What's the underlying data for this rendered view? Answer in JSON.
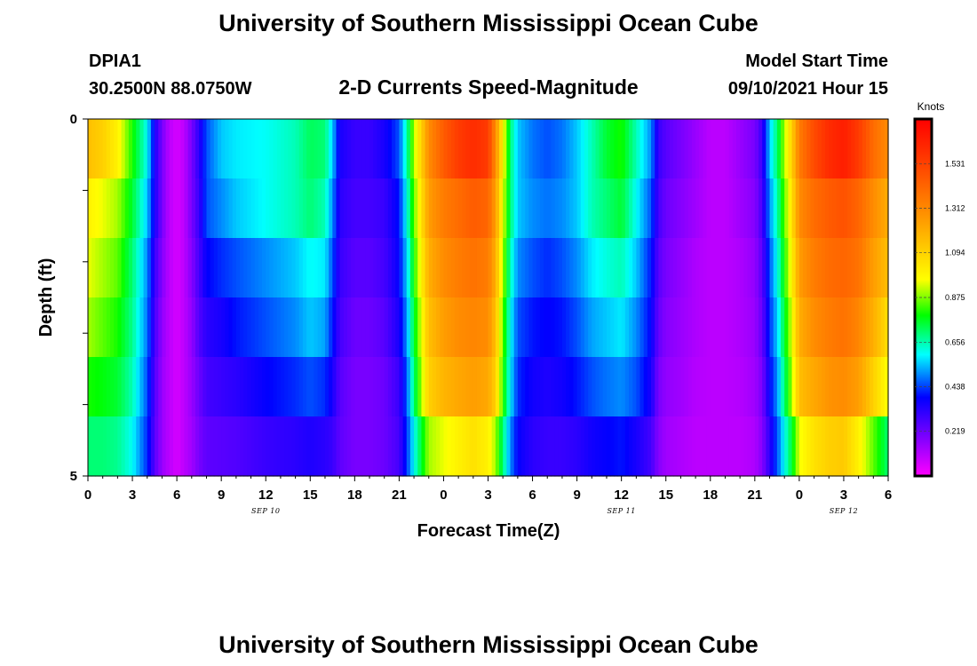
{
  "header": {
    "title": "University of Southern Mississippi Ocean Cube",
    "station": "DPIA1",
    "coords": "30.2500N  88.0750W",
    "subtitle": "2-D Currents Speed-Magnitude",
    "model_start_label": "Model Start Time",
    "model_start_value": "09/10/2021 Hour 15"
  },
  "footer": {
    "title": "University of Southern Mississippi Ocean Cube"
  },
  "chart_data": {
    "type": "heatmap",
    "xlabel": "Forecast Time(Z)",
    "ylabel": "Depth (ft)",
    "y_tick_labels": [
      "0",
      "5"
    ],
    "ylim": [
      0,
      5
    ],
    "x_tick_labels": [
      "0",
      "3",
      "6",
      "9",
      "12",
      "15",
      "18",
      "21",
      "0",
      "3",
      "6",
      "9",
      "12",
      "15",
      "18",
      "21",
      "0",
      "3",
      "6"
    ],
    "x_hours": [
      0,
      54
    ],
    "date_labels": [
      {
        "hour": 12,
        "label": "SEP 10"
      },
      {
        "hour": 36,
        "label": "SEP 11"
      },
      {
        "hour": 51,
        "label": "SEP 12"
      }
    ],
    "colorbar": {
      "title": "Knots",
      "ticks": [
        "0.219",
        "0.438",
        "0.656",
        "0.875",
        "1.094",
        "1.312",
        "1.531"
      ],
      "range": [
        0,
        1.75
      ]
    },
    "depth_layers": 6,
    "time_keypoints_hours": [
      0,
      1,
      2,
      3,
      4,
      4.5,
      5,
      5.5,
      6,
      6.5,
      7,
      7.5,
      8,
      9,
      10,
      12,
      14,
      15,
      16,
      16.5,
      17,
      18,
      19,
      20,
      21,
      21.5,
      22,
      22.5,
      23,
      24,
      25,
      26,
      27,
      27.5,
      28,
      28.5,
      29,
      30,
      31,
      32,
      33,
      34,
      35,
      36,
      37,
      38,
      38.5,
      39,
      40,
      41,
      42,
      43,
      44,
      45,
      45.5,
      46,
      46.5,
      47,
      47.5,
      48,
      49,
      50,
      51,
      52,
      53,
      54
    ],
    "speed_knots_by_layer": [
      [
        1.15,
        1.1,
        1.0,
        0.8,
        0.6,
        0.35,
        0.2,
        0.1,
        0.06,
        0.1,
        0.2,
        0.32,
        0.45,
        0.55,
        0.58,
        0.6,
        0.65,
        0.72,
        0.7,
        0.55,
        0.35,
        0.3,
        0.3,
        0.35,
        0.45,
        0.65,
        0.9,
        1.1,
        1.3,
        1.45,
        1.55,
        1.6,
        1.55,
        1.3,
        1.0,
        0.7,
        0.55,
        0.48,
        0.45,
        0.48,
        0.55,
        0.65,
        0.75,
        0.8,
        0.65,
        0.5,
        0.3,
        0.25,
        0.2,
        0.15,
        0.1,
        0.1,
        0.15,
        0.2,
        0.3,
        0.55,
        0.7,
        0.9,
        1.1,
        1.35,
        1.5,
        1.6,
        1.65,
        1.55,
        1.4,
        1.3
      ],
      [
        1.0,
        0.95,
        0.9,
        0.75,
        0.55,
        0.35,
        0.2,
        0.1,
        0.06,
        0.1,
        0.2,
        0.3,
        0.45,
        0.5,
        0.55,
        0.6,
        0.65,
        0.7,
        0.65,
        0.5,
        0.32,
        0.28,
        0.28,
        0.3,
        0.4,
        0.6,
        0.85,
        1.05,
        1.25,
        1.35,
        1.4,
        1.45,
        1.42,
        1.25,
        0.95,
        0.7,
        0.55,
        0.5,
        0.48,
        0.5,
        0.55,
        0.65,
        0.7,
        0.75,
        0.6,
        0.45,
        0.28,
        0.22,
        0.18,
        0.14,
        0.1,
        0.1,
        0.14,
        0.18,
        0.28,
        0.5,
        0.65,
        0.85,
        1.05,
        1.3,
        1.4,
        1.45,
        1.48,
        1.42,
        1.3,
        1.2
      ],
      [
        0.95,
        0.9,
        0.85,
        0.7,
        0.5,
        0.3,
        0.18,
        0.1,
        0.06,
        0.1,
        0.18,
        0.28,
        0.38,
        0.42,
        0.45,
        0.5,
        0.55,
        0.6,
        0.58,
        0.45,
        0.3,
        0.25,
        0.25,
        0.28,
        0.38,
        0.55,
        0.8,
        1.0,
        1.2,
        1.3,
        1.35,
        1.38,
        1.35,
        1.2,
        0.9,
        0.65,
        0.5,
        0.45,
        0.42,
        0.45,
        0.5,
        0.58,
        0.62,
        0.65,
        0.55,
        0.4,
        0.25,
        0.2,
        0.16,
        0.12,
        0.1,
        0.1,
        0.12,
        0.16,
        0.25,
        0.45,
        0.6,
        0.8,
        1.0,
        1.25,
        1.35,
        1.4,
        1.42,
        1.38,
        1.25,
        1.15
      ],
      [
        0.9,
        0.85,
        0.8,
        0.68,
        0.48,
        0.28,
        0.16,
        0.1,
        0.06,
        0.1,
        0.16,
        0.26,
        0.32,
        0.35,
        0.4,
        0.45,
        0.5,
        0.55,
        0.52,
        0.4,
        0.28,
        0.22,
        0.22,
        0.25,
        0.35,
        0.5,
        0.75,
        0.95,
        1.15,
        1.25,
        1.3,
        1.32,
        1.3,
        1.15,
        0.85,
        0.6,
        0.45,
        0.4,
        0.38,
        0.4,
        0.45,
        0.52,
        0.55,
        0.58,
        0.5,
        0.38,
        0.23,
        0.18,
        0.15,
        0.12,
        0.1,
        0.1,
        0.12,
        0.15,
        0.23,
        0.42,
        0.55,
        0.75,
        0.95,
        1.2,
        1.3,
        1.35,
        1.38,
        1.32,
        1.2,
        1.05
      ],
      [
        0.8,
        0.78,
        0.75,
        0.65,
        0.45,
        0.26,
        0.15,
        0.1,
        0.06,
        0.1,
        0.15,
        0.22,
        0.28,
        0.3,
        0.32,
        0.38,
        0.42,
        0.45,
        0.42,
        0.35,
        0.25,
        0.2,
        0.2,
        0.22,
        0.3,
        0.45,
        0.7,
        0.9,
        1.1,
        1.18,
        1.22,
        1.25,
        1.22,
        1.1,
        0.82,
        0.58,
        0.42,
        0.36,
        0.34,
        0.36,
        0.4,
        0.45,
        0.48,
        0.5,
        0.45,
        0.35,
        0.2,
        0.16,
        0.14,
        0.11,
        0.1,
        0.1,
        0.11,
        0.14,
        0.2,
        0.38,
        0.5,
        0.7,
        0.9,
        1.15,
        1.22,
        1.28,
        1.3,
        1.25,
        1.1,
        0.95
      ],
      [
        0.7,
        0.7,
        0.68,
        0.6,
        0.42,
        0.25,
        0.15,
        0.1,
        0.06,
        0.1,
        0.14,
        0.2,
        0.24,
        0.25,
        0.26,
        0.3,
        0.32,
        0.34,
        0.32,
        0.3,
        0.24,
        0.2,
        0.2,
        0.22,
        0.28,
        0.42,
        0.6,
        0.75,
        0.9,
        0.95,
        1.0,
        1.05,
        1.0,
        0.9,
        0.7,
        0.5,
        0.38,
        0.32,
        0.3,
        0.3,
        0.32,
        0.36,
        0.38,
        0.4,
        0.35,
        0.28,
        0.18,
        0.14,
        0.12,
        0.1,
        0.1,
        0.1,
        0.1,
        0.12,
        0.18,
        0.32,
        0.45,
        0.6,
        0.75,
        0.95,
        1.05,
        1.1,
        1.12,
        1.0,
        0.85,
        0.7
      ]
    ]
  }
}
